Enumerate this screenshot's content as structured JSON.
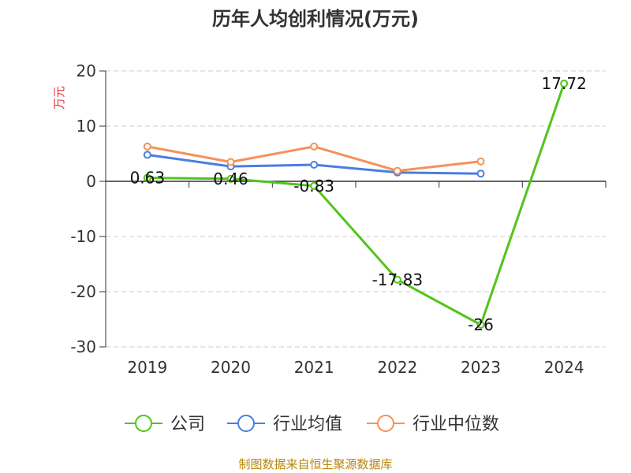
{
  "chart_data": {
    "type": "line",
    "title": "历年人均创利情况(万元)",
    "ylabel": "万元",
    "categories": [
      "2019",
      "2020",
      "2021",
      "2022",
      "2023",
      "2024"
    ],
    "ylim": [
      -30,
      20
    ],
    "yticks": [
      20,
      10,
      0,
      -10,
      -20,
      -30
    ],
    "grid": true,
    "legend_position": "bottom",
    "series": [
      {
        "name": "公司",
        "color": "#52c41a",
        "values": [
          0.63,
          0.46,
          -0.83,
          -17.83,
          -26,
          17.72
        ],
        "labels": [
          "0.63",
          "0.46",
          "-0.83",
          "-17.83",
          "-26",
          "17.72"
        ]
      },
      {
        "name": "行业均值",
        "color": "#4a7ee0",
        "values": [
          4.8,
          2.7,
          3.0,
          1.6,
          1.4,
          null
        ]
      },
      {
        "name": "行业中位数",
        "color": "#f5915a",
        "values": [
          6.3,
          3.5,
          6.3,
          1.9,
          3.6,
          null
        ]
      }
    ],
    "source": "制图数据来自恒生聚源数据库"
  }
}
